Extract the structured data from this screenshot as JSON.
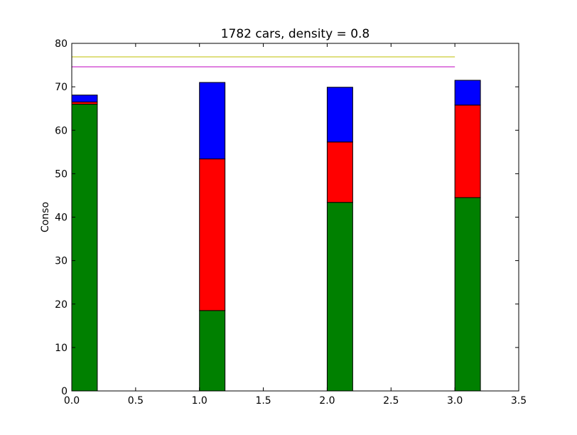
{
  "chart_data": {
    "type": "bar",
    "stacked": true,
    "title": "1782 cars, density = 0.8",
    "xlabel": "",
    "ylabel": "Conso",
    "xlim": [
      0.0,
      3.5
    ],
    "ylim": [
      0,
      80
    ],
    "xticks": [
      "0.0",
      "0.5",
      "1.0",
      "1.5",
      "2.0",
      "2.5",
      "3.0",
      "3.5"
    ],
    "yticks": [
      "0",
      "10",
      "20",
      "30",
      "40",
      "50",
      "60",
      "70",
      "80"
    ],
    "bar_width": 0.2,
    "x": [
      0,
      1,
      2,
      3
    ],
    "series": [
      {
        "color": "#008000",
        "values": [
          66.0,
          18.5,
          43.4,
          44.5
        ]
      },
      {
        "color": "#ff0000",
        "values": [
          0.5,
          34.9,
          13.9,
          21.3
        ]
      },
      {
        "color": "#0000ff",
        "values": [
          1.6,
          17.6,
          12.6,
          5.7
        ]
      }
    ],
    "hlines": [
      {
        "y": 76.9,
        "xmin": 0,
        "xmax": 3.0,
        "color": "#bfbf00"
      },
      {
        "y": 74.6,
        "xmin": 0,
        "xmax": 3.0,
        "color": "#bf00bf"
      }
    ],
    "grid": false
  }
}
